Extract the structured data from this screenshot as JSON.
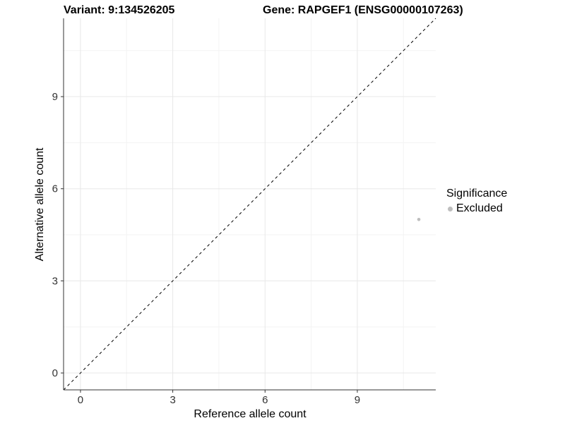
{
  "figure": {
    "title_left": "Variant: 9:134526205",
    "title_right": "Gene: RAPGEF1 (ENSG00000107263)"
  },
  "chart_data": {
    "type": "scatter",
    "xlabel": "Reference allele count",
    "ylabel": "Alternative allele count",
    "xlim": [
      -0.55,
      11.55
    ],
    "ylim": [
      -0.55,
      11.55
    ],
    "x_ticks": [
      0,
      3,
      6,
      9
    ],
    "y_ticks": [
      0,
      3,
      6,
      9
    ],
    "x_minor_ticks": [
      1.5,
      4.5,
      7.5,
      10.5
    ],
    "y_minor_ticks": [
      1.5,
      4.5,
      7.5,
      10.5
    ],
    "grid": "major+minor",
    "reference_line": {
      "type": "identity",
      "equation": "y = x",
      "style": "dashed",
      "color": "#000000"
    },
    "series": [
      {
        "name": "Excluded",
        "color": "#bebebe",
        "points": [
          {
            "x": 11,
            "y": 5
          }
        ]
      }
    ],
    "legend": {
      "title": "Significance",
      "position": "right",
      "items": [
        {
          "label": "Excluded",
          "color": "#bebebe"
        }
      ]
    }
  },
  "colors": {
    "background": "#ffffff",
    "grid_major": "#e8e8e8",
    "grid_minor": "#f3f3f3",
    "axis": "#333333",
    "tick_text": "#333333",
    "title_text": "#000000"
  }
}
